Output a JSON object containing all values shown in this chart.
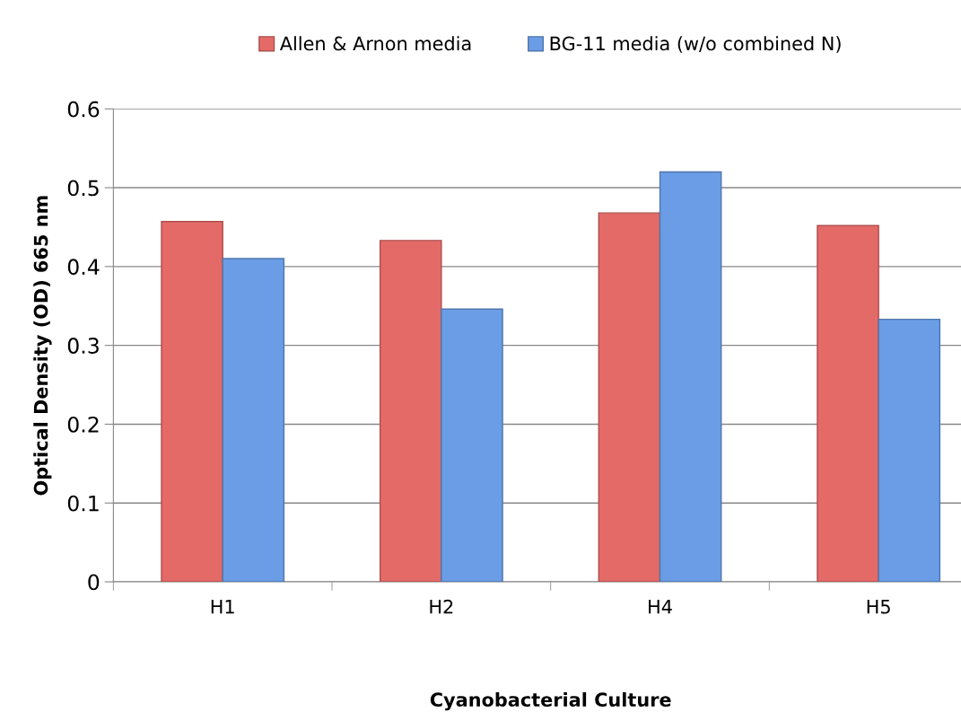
{
  "chart_data": {
    "type": "bar",
    "categories": [
      "H1",
      "H2",
      "H4",
      "H5"
    ],
    "series": [
      {
        "name": "Allen & Arnon media",
        "color": "#e46a68",
        "values": [
          0.457,
          0.433,
          0.468,
          0.452
        ]
      },
      {
        "name": "BG-11 media (w/o combined N)",
        "color": "#6a9de6",
        "values": [
          0.41,
          0.346,
          0.52,
          0.333
        ]
      }
    ],
    "xlabel": "Cyanobacterial Culture",
    "ylabel": "Optical Density (OD) 665 nm",
    "ylim": [
      0,
      0.6
    ],
    "yticks": [
      0,
      0.1,
      0.2,
      0.3,
      0.4,
      0.5,
      0.6
    ],
    "grid": "y",
    "legend": "top"
  }
}
